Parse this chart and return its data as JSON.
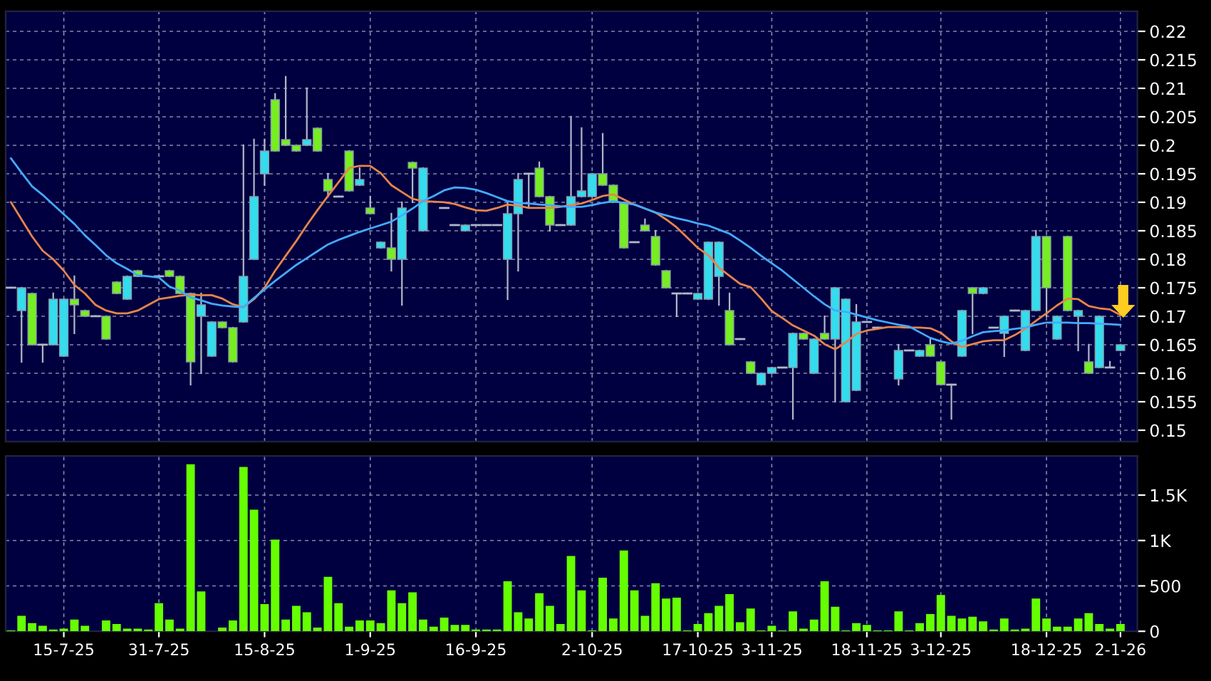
{
  "chart_data": [
    {
      "type": "candlestick",
      "categories": [
        null,
        null,
        null,
        null,
        null,
        null,
        null,
        null,
        null,
        null,
        null,
        null,
        null,
        null,
        null,
        null,
        null,
        null,
        null,
        null,
        null,
        null,
        null,
        null,
        null,
        null,
        null,
        null,
        null,
        null,
        null,
        null,
        null,
        null,
        null,
        null,
        null,
        null,
        null,
        null,
        null,
        null,
        null,
        null,
        null,
        null,
        null,
        null,
        null,
        null,
        null,
        null,
        null,
        null,
        null,
        null,
        null,
        null,
        null,
        null,
        null,
        null,
        null,
        null,
        null,
        null,
        null,
        null,
        null,
        null,
        null,
        null,
        null,
        null,
        null,
        null,
        null,
        null,
        null,
        null,
        null,
        null,
        null,
        null,
        null,
        null,
        null,
        null,
        null,
        null,
        null,
        null,
        null,
        null,
        null,
        null,
        null,
        null,
        null,
        null,
        null,
        null,
        null,
        null,
        null,
        null
      ],
      "ohlc": [
        [
          0.175,
          0.175,
          0.175,
          0.175
        ],
        [
          0.171,
          0.175,
          0.162,
          0.175
        ],
        [
          0.174,
          0.174,
          0.165,
          0.165
        ],
        [
          0.165,
          0.165,
          0.162,
          0.165
        ],
        [
          0.165,
          0.174,
          0.165,
          0.173
        ],
        [
          0.163,
          0.173,
          0.163,
          0.173
        ],
        [
          0.173,
          0.177,
          0.167,
          0.172
        ],
        [
          0.171,
          0.171,
          0.17,
          0.17
        ],
        [
          0.17,
          0.17,
          0.17,
          0.17
        ],
        [
          0.17,
          0.17,
          0.166,
          0.166
        ],
        [
          0.176,
          0.176,
          0.174,
          0.174
        ],
        [
          0.173,
          0.177,
          0.173,
          0.177
        ],
        [
          0.178,
          0.178,
          0.177,
          0.177
        ],
        null,
        [
          0.177,
          0.177,
          0.177,
          0.177
        ],
        [
          0.178,
          0.178,
          0.177,
          0.177
        ],
        [
          0.177,
          0.177,
          0.174,
          0.174
        ],
        [
          0.174,
          0.174,
          0.158,
          0.162
        ],
        [
          0.17,
          0.174,
          0.16,
          0.172
        ],
        [
          0.163,
          0.169,
          0.163,
          0.169
        ],
        [
          0.169,
          0.169,
          0.168,
          0.168
        ],
        [
          0.168,
          0.168,
          0.162,
          0.162
        ],
        [
          0.169,
          0.2,
          0.169,
          0.177
        ],
        [
          0.18,
          0.201,
          0.18,
          0.191
        ],
        [
          0.195,
          0.201,
          0.193,
          0.199
        ],
        [
          0.208,
          0.209,
          0.199,
          0.199
        ],
        [
          0.201,
          0.212,
          0.2,
          0.2
        ],
        [
          0.2,
          0.2,
          0.199,
          0.199
        ],
        [
          0.2,
          0.21,
          0.2,
          0.201
        ],
        [
          0.203,
          0.203,
          0.199,
          0.199
        ],
        [
          0.194,
          0.195,
          0.191,
          0.192
        ],
        [
          0.191,
          0.191,
          0.191,
          0.191
        ],
        [
          0.199,
          0.199,
          0.192,
          0.192
        ],
        [
          0.193,
          0.196,
          0.193,
          0.194
        ],
        [
          0.189,
          0.191,
          0.188,
          0.188
        ],
        [
          0.182,
          0.183,
          0.182,
          0.183
        ],
        [
          0.182,
          0.188,
          0.178,
          0.18
        ],
        [
          0.18,
          0.19,
          0.172,
          0.189
        ],
        [
          0.197,
          0.197,
          0.19,
          0.196
        ],
        [
          0.185,
          0.196,
          0.185,
          0.196
        ],
        null,
        [
          0.189,
          0.189,
          0.189,
          0.189
        ],
        [
          0.186,
          0.186,
          0.186,
          0.186
        ],
        [
          0.185,
          0.186,
          0.185,
          0.186
        ],
        [
          0.186,
          0.186,
          0.186,
          0.186
        ],
        [
          0.186,
          0.186,
          0.186,
          0.186
        ],
        [
          0.186,
          0.186,
          0.186,
          0.186
        ],
        [
          0.18,
          0.19,
          0.173,
          0.188
        ],
        [
          0.188,
          0.195,
          0.178,
          0.194
        ],
        [
          0.195,
          0.195,
          0.189,
          0.195
        ],
        [
          0.196,
          0.197,
          0.191,
          0.191
        ],
        [
          0.191,
          0.191,
          0.185,
          0.186
        ],
        [
          0.186,
          0.186,
          0.186,
          0.186
        ],
        [
          0.186,
          0.205,
          0.186,
          0.191
        ],
        [
          0.191,
          0.203,
          0.191,
          0.192
        ],
        [
          0.191,
          0.195,
          0.191,
          0.195
        ],
        [
          0.195,
          0.202,
          0.193,
          0.193
        ],
        [
          0.193,
          0.193,
          0.19,
          0.19
        ],
        [
          0.19,
          0.19,
          0.182,
          0.182
        ],
        [
          0.183,
          0.183,
          0.183,
          0.183
        ],
        [
          0.186,
          0.187,
          0.185,
          0.185
        ],
        [
          0.184,
          0.185,
          0.179,
          0.179
        ],
        [
          0.178,
          0.178,
          0.175,
          0.175
        ],
        [
          0.174,
          0.174,
          0.17,
          0.174
        ],
        [
          0.174,
          0.174,
          0.174,
          0.174
        ],
        [
          0.173,
          0.174,
          0.173,
          0.174
        ],
        [
          0.173,
          0.183,
          0.173,
          0.183
        ],
        [
          0.177,
          0.183,
          0.172,
          0.183
        ],
        [
          0.171,
          0.174,
          0.165,
          0.165
        ],
        [
          0.166,
          0.166,
          0.166,
          0.166
        ],
        [
          0.162,
          0.162,
          0.16,
          0.16
        ],
        [
          0.158,
          0.16,
          0.158,
          0.16
        ],
        [
          0.16,
          0.161,
          0.16,
          0.161
        ],
        [
          0.161,
          0.161,
          0.161,
          0.161
        ],
        [
          0.161,
          0.167,
          0.152,
          0.167
        ],
        [
          0.167,
          0.167,
          0.166,
          0.166
        ],
        [
          0.16,
          0.166,
          0.16,
          0.166
        ],
        [
          0.167,
          0.17,
          0.166,
          0.166
        ],
        [
          0.166,
          0.175,
          0.155,
          0.175
        ],
        [
          0.155,
          0.173,
          0.155,
          0.173
        ],
        [
          0.157,
          0.172,
          0.157,
          0.169
        ],
        [
          0.169,
          0.169,
          0.169,
          0.169
        ],
        [
          0.168,
          0.168,
          0.168,
          0.168
        ],
        null,
        [
          0.159,
          0.165,
          0.158,
          0.164
        ],
        [
          0.164,
          0.164,
          0.164,
          0.164
        ],
        [
          0.163,
          0.164,
          0.163,
          0.164
        ],
        [
          0.165,
          0.166,
          0.163,
          0.163
        ],
        [
          0.162,
          0.162,
          0.158,
          0.158
        ],
        [
          0.158,
          0.158,
          0.152,
          0.158
        ],
        [
          0.163,
          0.171,
          0.163,
          0.171
        ],
        [
          0.175,
          0.175,
          0.167,
          0.174
        ],
        [
          0.174,
          0.175,
          0.174,
          0.175
        ],
        [
          0.168,
          0.168,
          0.168,
          0.168
        ],
        [
          0.167,
          0.17,
          0.163,
          0.17
        ],
        [
          0.171,
          0.171,
          0.171,
          0.171
        ],
        [
          0.164,
          0.171,
          0.164,
          0.171
        ],
        [
          0.171,
          0.185,
          0.171,
          0.184
        ],
        [
          0.184,
          0.184,
          0.17,
          0.175
        ],
        [
          0.166,
          0.17,
          0.166,
          0.17
        ],
        [
          0.184,
          0.184,
          0.171,
          0.171
        ],
        [
          0.17,
          0.171,
          0.164,
          0.171
        ],
        [
          0.162,
          0.165,
          0.16,
          0.16
        ],
        [
          0.161,
          0.17,
          0.161,
          0.17
        ],
        [
          0.161,
          0.162,
          0.161,
          0.161
        ],
        [
          0.164,
          0.165,
          0.164,
          0.165
        ]
      ],
      "colors": [
        "#b0b8c8",
        "#33ddee",
        "#77ee22",
        "#b0b8c8",
        "#33ddee",
        "#33ddee",
        "#77ee22",
        "#77ee22",
        "#b0b8c8",
        "#77ee22",
        "#77ee22",
        "#33ddee",
        "#77ee22",
        "#b0b8c8",
        "#b0b8c8",
        "#77ee22",
        "#77ee22",
        "#77ee22",
        "#33ddee",
        "#33ddee",
        "#77ee22",
        "#77ee22",
        "#33ddee",
        "#33ddee",
        "#33ddee",
        "#77ee22",
        "#77ee22",
        "#77ee22",
        "#33ddee",
        "#77ee22",
        "#77ee22",
        "#b0b8c8",
        "#77ee22",
        "#33ddee",
        "#77ee22",
        "#33ddee",
        "#77ee22",
        "#33ddee",
        "#77ee22",
        "#33ddee",
        "#b0b8c8",
        "#b0b8c8",
        "#b0b8c8",
        "#33ddee",
        "#b0b8c8",
        "#b0b8c8",
        "#b0b8c8",
        "#33ddee",
        "#33ddee",
        "#b0b8c8",
        "#77ee22",
        "#77ee22",
        "#b0b8c8",
        "#33ddee",
        "#33ddee",
        "#33ddee",
        "#77ee22",
        "#77ee22",
        "#77ee22",
        "#b0b8c8",
        "#77ee22",
        "#77ee22",
        "#77ee22",
        "#b0b8c8",
        "#b0b8c8",
        "#33ddee",
        "#33ddee",
        "#33ddee",
        "#77ee22",
        "#b0b8c8",
        "#77ee22",
        "#33ddee",
        "#33ddee",
        "#b0b8c8",
        "#33ddee",
        "#77ee22",
        "#33ddee",
        "#77ee22",
        "#33ddee",
        "#33ddee",
        "#33ddee",
        "#b0b8c8",
        "#b0b8c8",
        "#b0b8c8",
        "#33ddee",
        "#b0b8c8",
        "#33ddee",
        "#77ee22",
        "#77ee22",
        "#b0b8c8",
        "#33ddee",
        "#77ee22",
        "#33ddee",
        "#b0b8c8",
        "#33ddee",
        "#b0b8c8",
        "#33ddee",
        "#33ddee",
        "#77ee22",
        "#33ddee",
        "#77ee22",
        "#33ddee",
        "#77ee22",
        "#33ddee",
        "#b0b8c8",
        "#33ddee"
      ],
      "series": [
        {
          "type": "line",
          "color": "#e8844a",
          "values": [
            0.19,
            0.187,
            0.184,
            0.1815,
            0.18,
            0.178,
            0.1755,
            0.174,
            0.172,
            0.171,
            0.1705,
            0.1705,
            0.171,
            0.172,
            0.173,
            0.1733,
            0.1736,
            0.1738,
            0.1737,
            0.1737,
            0.1731,
            0.1721,
            0.1716,
            0.173,
            0.175,
            0.178,
            0.1806,
            0.1832,
            0.186,
            0.1886,
            0.1911,
            0.1935,
            0.196,
            0.1964,
            0.1964,
            0.1951,
            0.193,
            0.1918,
            0.1906,
            0.1902,
            0.1901,
            0.19,
            0.1897,
            0.1891,
            0.1886,
            0.1885,
            0.189,
            0.1896,
            0.1894,
            0.189,
            0.189,
            0.189,
            0.1892,
            0.1895,
            0.1898,
            0.1904,
            0.1911,
            0.1914,
            0.1905,
            0.1896,
            0.1889,
            0.1882,
            0.187,
            0.1856,
            0.1838,
            0.182,
            0.1807,
            0.1785,
            0.1771,
            0.1757,
            0.1751,
            0.1731,
            0.1709,
            0.1697,
            0.1684,
            0.1675,
            0.1666,
            0.1651,
            0.1642,
            0.1654,
            0.1669,
            0.1675,
            0.1678,
            0.1681,
            0.1681,
            0.168,
            0.168,
            0.1679,
            0.1671,
            0.1656,
            0.1646,
            0.1651,
            0.1656,
            0.1658,
            0.1658,
            0.1667,
            0.1678,
            0.1692,
            0.1705,
            0.1719,
            0.1731,
            0.173,
            0.1718,
            0.1714,
            0.1712,
            0.1702
          ]
        },
        {
          "type": "line",
          "color": "#44aaff",
          "values": [
            0.1977,
            0.1952,
            0.1928,
            0.1913,
            0.1896,
            0.1879,
            0.1862,
            0.1842,
            0.1825,
            0.1807,
            0.1793,
            0.1783,
            0.1772,
            0.177,
            0.1768,
            0.1752,
            0.1745,
            0.1733,
            0.1728,
            0.1722,
            0.1719,
            0.1717,
            0.1716,
            0.1732,
            0.1747,
            0.1762,
            0.1776,
            0.179,
            0.1802,
            0.1814,
            0.1826,
            0.1834,
            0.1841,
            0.1848,
            0.1854,
            0.186,
            0.1866,
            0.1877,
            0.1889,
            0.1902,
            0.1911,
            0.1921,
            0.1926,
            0.1925,
            0.1922,
            0.1916,
            0.1909,
            0.1902,
            0.1899,
            0.1898,
            0.1896,
            0.1895,
            0.1893,
            0.1892,
            0.1892,
            0.1895,
            0.1899,
            0.1902,
            0.1899,
            0.1896,
            0.1889,
            0.1882,
            0.1877,
            0.1872,
            0.1868,
            0.1863,
            0.1859,
            0.1852,
            0.1845,
            0.1833,
            0.182,
            0.1806,
            0.1793,
            0.178,
            0.1765,
            0.175,
            0.1735,
            0.1721,
            0.171,
            0.1708,
            0.1703,
            0.1698,
            0.1693,
            0.1689,
            0.1685,
            0.1682,
            0.1672,
            0.1662,
            0.1656,
            0.1652,
            0.1657,
            0.1665,
            0.1672,
            0.1674,
            0.1675,
            0.1678,
            0.168,
            0.1685,
            0.1689,
            0.1689,
            0.1689,
            0.1688,
            0.1688,
            0.1687,
            0.1686,
            0.1685
          ]
        }
      ],
      "ylim": [
        0.148,
        0.2235
      ],
      "yticks": [
        0.15,
        0.155,
        0.16,
        0.165,
        0.17,
        0.175,
        0.18,
        0.185,
        0.19,
        0.195,
        0.2,
        0.205,
        0.21,
        0.215,
        0.22
      ],
      "grid": true,
      "tick_labels": "y"
    },
    {
      "type": "bar",
      "categories": [
        null,
        null,
        null,
        null,
        null,
        "15-7-25",
        null,
        null,
        null,
        null,
        null,
        null,
        null,
        null,
        "31-7-25",
        null,
        null,
        null,
        null,
        null,
        null,
        null,
        null,
        null,
        "15-8-25",
        null,
        null,
        null,
        null,
        null,
        null,
        null,
        null,
        null,
        "1-9-25",
        null,
        null,
        null,
        null,
        null,
        null,
        null,
        null,
        null,
        "16-9-25",
        null,
        null,
        null,
        null,
        null,
        null,
        null,
        null,
        null,
        null,
        "2-10-25",
        null,
        null,
        null,
        null,
        null,
        null,
        null,
        null,
        null,
        "17-10-25",
        null,
        null,
        null,
        null,
        null,
        null,
        "3-11-25",
        null,
        null,
        null,
        null,
        null,
        null,
        null,
        null,
        "18-11-25",
        null,
        null,
        null,
        null,
        null,
        null,
        "3-12-25",
        null,
        null,
        null,
        null,
        null,
        null,
        null,
        null,
        null,
        "18-12-25",
        null,
        null,
        null,
        null,
        null,
        null,
        "2-1-26"
      ],
      "values": [
        10,
        170,
        90,
        60,
        20,
        30,
        130,
        60,
        0,
        120,
        80,
        30,
        30,
        20,
        310,
        130,
        30,
        1840,
        440,
        0,
        40,
        120,
        1810,
        1340,
        300,
        1010,
        130,
        280,
        210,
        40,
        600,
        310,
        50,
        120,
        120,
        90,
        450,
        310,
        430,
        130,
        50,
        150,
        70,
        70,
        20,
        20,
        20,
        550,
        210,
        140,
        420,
        280,
        80,
        830,
        450,
        10,
        590,
        140,
        890,
        450,
        170,
        530,
        360,
        370,
        10,
        80,
        200,
        280,
        410,
        100,
        250,
        10,
        60,
        10,
        220,
        30,
        130,
        550,
        270,
        10,
        90,
        70,
        10,
        10,
        220,
        10,
        90,
        190,
        400,
        170,
        140,
        160,
        110,
        20,
        140,
        20,
        30,
        360,
        140,
        50,
        50,
        140,
        200,
        80,
        30,
        80
      ],
      "color": "#66ff00",
      "ylim": [
        0,
        1930
      ],
      "yticks": [
        0,
        500,
        {
          "value": 1000,
          "label": "1K"
        },
        {
          "value": 1500,
          "label": "1.5K"
        }
      ],
      "grid": true
    }
  ]
}
